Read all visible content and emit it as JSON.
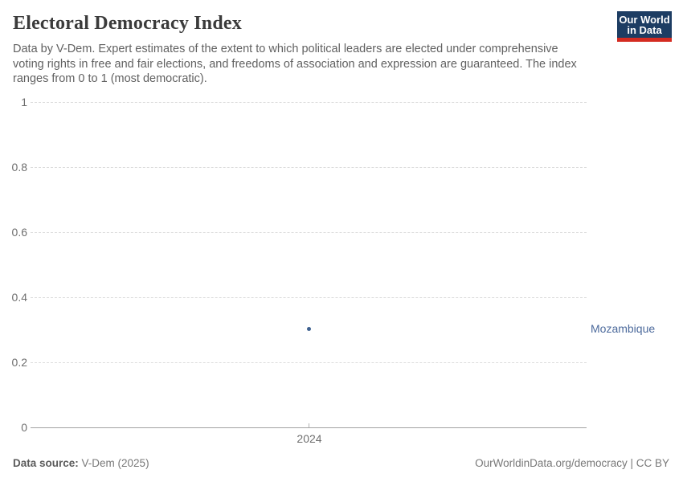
{
  "header": {
    "title": "Electoral Democracy Index",
    "subtitle": "Data by V-Dem. Expert estimates of the extent to which political leaders are elected under comprehensive voting rights in free and fair elections, and freedoms of association and expression are guaranteed. The index ranges from 0 to 1 (most democratic).",
    "logo": {
      "line1": "Our World",
      "line2": "in Data"
    }
  },
  "chart_data": {
    "type": "scatter",
    "title": "Electoral Democracy Index",
    "xlabel": "",
    "ylabel": "",
    "ylim": [
      0,
      1
    ],
    "ytick_labels": [
      "1",
      "0.8",
      "0.6",
      "0.4",
      "0.2",
      "0"
    ],
    "xtick_labels": [
      "2024"
    ],
    "grid": "horizontal-dashed",
    "legend_position": "entity-label-right",
    "series": [
      {
        "name": "Mozambique",
        "x": [
          2024
        ],
        "values": [
          0.3
        ],
        "color": "#4C6A9C",
        "marker": "dot"
      }
    ]
  },
  "footer": {
    "source_label": "Data source:",
    "source_value": " V-Dem (2025)",
    "credit": "OurWorldinData.org/democracy | CC BY"
  },
  "colors": {
    "accent_blue": "#4C6A9C",
    "logo_navy": "#1d3d63",
    "logo_red": "#d42b21",
    "gridline": "#dcdcdc",
    "axis": "#a3a3a3",
    "tick_text": "#6e6e6e"
  }
}
